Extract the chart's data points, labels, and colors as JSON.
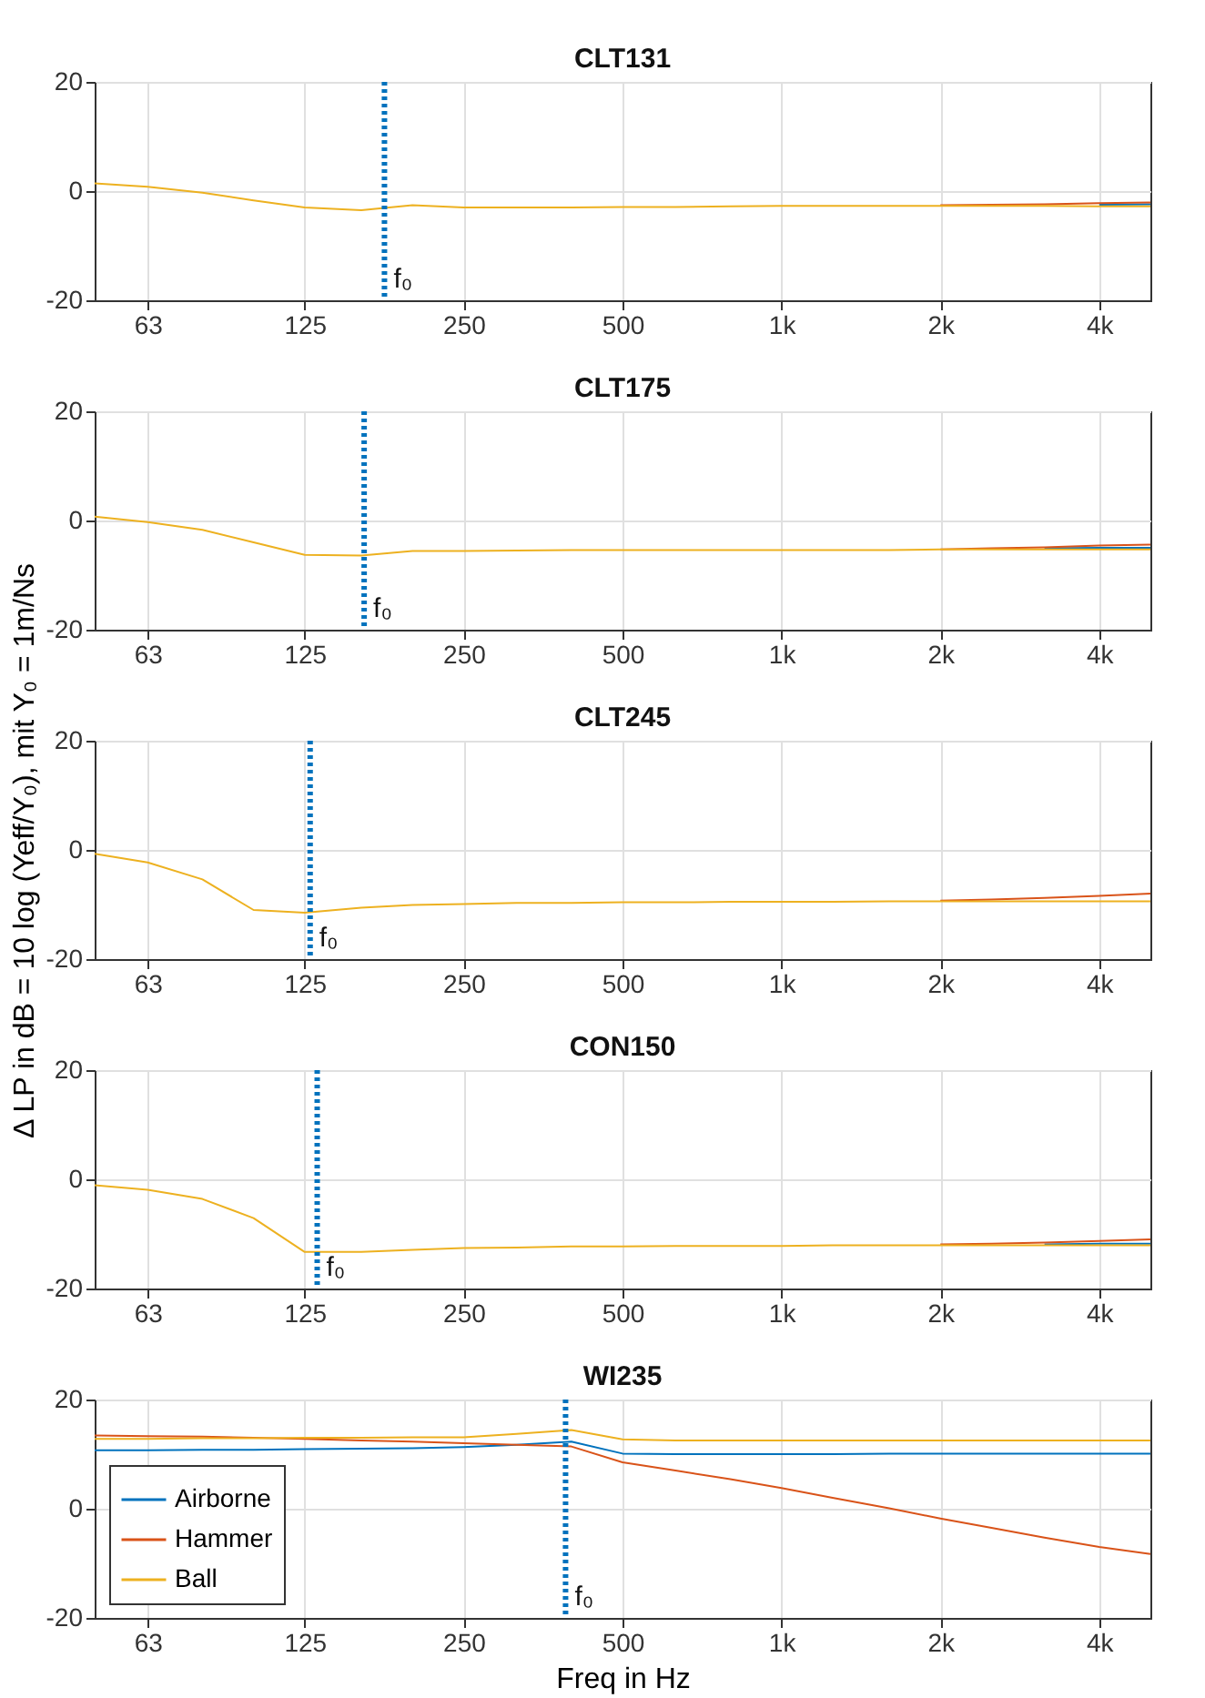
{
  "chart_data": [
    {
      "type": "line",
      "title": "CLT131",
      "x": [
        50,
        63,
        80,
        100,
        125,
        160,
        200,
        250,
        315,
        400,
        500,
        630,
        800,
        1000,
        1250,
        1600,
        2000,
        2500,
        3150,
        4000,
        5000
      ],
      "xlim": [
        50,
        5000
      ],
      "xticks": [
        63,
        125,
        250,
        500,
        {
          "value": 1000,
          "label": "1k"
        },
        {
          "value": 2000,
          "label": "2k"
        },
        {
          "value": 4000,
          "label": "4k"
        }
      ],
      "ylim": [
        -20,
        20
      ],
      "yticks": [
        -20,
        0,
        20
      ],
      "grid": true,
      "log": "x",
      "series": [
        {
          "color": "#0072bd",
          "values": [
            null,
            null,
            null,
            null,
            null,
            null,
            null,
            null,
            null,
            null,
            null,
            null,
            null,
            null,
            null,
            null,
            null,
            null,
            null,
            -2.5,
            -2.4
          ]
        },
        {
          "color": "#d95319",
          "values": [
            null,
            null,
            null,
            null,
            null,
            null,
            null,
            null,
            null,
            null,
            null,
            null,
            null,
            null,
            null,
            null,
            -2.6,
            -2.5,
            -2.4,
            -2.2,
            -2.1
          ]
        },
        {
          "color": "#edb120",
          "values": [
            1.4,
            0.8,
            -0.3,
            -1.7,
            -3.0,
            -3.5,
            -2.6,
            -3.0,
            -3.0,
            -3.0,
            -2.9,
            -2.9,
            -2.8,
            -2.7,
            -2.7,
            -2.7,
            -2.7,
            -2.7,
            -2.7,
            -2.8,
            -2.8
          ]
        }
      ],
      "ref_lines": [
        {
          "axis": "x",
          "value": 177,
          "label": "f₀",
          "color": "#0072bd",
          "line_style": "dotted"
        }
      ]
    },
    {
      "type": "line",
      "title": "CLT175",
      "x": [
        50,
        63,
        80,
        100,
        125,
        160,
        200,
        250,
        315,
        400,
        500,
        630,
        800,
        1000,
        1250,
        1600,
        2000,
        2500,
        3150,
        4000,
        5000
      ],
      "xlim": [
        50,
        5000
      ],
      "xticks": [
        63,
        125,
        250,
        500,
        {
          "value": 1000,
          "label": "1k"
        },
        {
          "value": 2000,
          "label": "2k"
        },
        {
          "value": 4000,
          "label": "4k"
        }
      ],
      "ylim": [
        -20,
        20
      ],
      "yticks": [
        -20,
        0,
        20
      ],
      "grid": true,
      "log": "x",
      "series": [
        {
          "color": "#0072bd",
          "values": [
            null,
            null,
            null,
            null,
            null,
            null,
            null,
            null,
            null,
            null,
            null,
            null,
            null,
            null,
            null,
            null,
            null,
            null,
            -5.1,
            -5.0,
            -5.0
          ]
        },
        {
          "color": "#d95319",
          "values": [
            null,
            null,
            null,
            null,
            null,
            null,
            null,
            null,
            null,
            null,
            null,
            null,
            null,
            null,
            null,
            null,
            -5.3,
            -5.1,
            -4.9,
            -4.6,
            -4.4
          ]
        },
        {
          "color": "#edb120",
          "values": [
            0.7,
            -0.3,
            -1.7,
            -4.0,
            -6.3,
            -6.4,
            -5.6,
            -5.6,
            -5.5,
            -5.4,
            -5.4,
            -5.4,
            -5.4,
            -5.4,
            -5.4,
            -5.4,
            -5.3,
            -5.3,
            -5.3,
            -5.3,
            -5.3
          ]
        }
      ],
      "ref_lines": [
        {
          "axis": "x",
          "value": 162,
          "label": "f₀",
          "color": "#0072bd",
          "line_style": "dotted"
        }
      ]
    },
    {
      "type": "line",
      "title": "CLT245",
      "x": [
        50,
        63,
        80,
        100,
        125,
        160,
        200,
        250,
        315,
        400,
        500,
        630,
        800,
        1000,
        1250,
        1600,
        2000,
        2500,
        3150,
        4000,
        5000
      ],
      "xlim": [
        50,
        5000
      ],
      "xticks": [
        63,
        125,
        250,
        500,
        {
          "value": 1000,
          "label": "1k"
        },
        {
          "value": 2000,
          "label": "2k"
        },
        {
          "value": 4000,
          "label": "4k"
        }
      ],
      "ylim": [
        -20,
        20
      ],
      "yticks": [
        -20,
        0,
        20
      ],
      "grid": true,
      "log": "x",
      "ylabel": "Δ LP in dB = 10 log (Yeff/Y₀), mit Y₀ = 1m/Ns",
      "series": [
        {
          "color": "#0072bd",
          "values": [
            null,
            null,
            null,
            null,
            null,
            null,
            null,
            null,
            null,
            null,
            null,
            null,
            null,
            null,
            null,
            null,
            null,
            null,
            null,
            null,
            null
          ]
        },
        {
          "color": "#d95319",
          "values": [
            null,
            null,
            null,
            null,
            null,
            null,
            null,
            null,
            null,
            null,
            null,
            null,
            null,
            null,
            null,
            null,
            -9.3,
            -9.1,
            -8.8,
            -8.4,
            -8.0
          ]
        },
        {
          "color": "#edb120",
          "values": [
            -0.7,
            -2.3,
            -5.4,
            -11.0,
            -11.5,
            -10.6,
            -10.1,
            -9.9,
            -9.7,
            -9.7,
            -9.6,
            -9.6,
            -9.5,
            -9.5,
            -9.5,
            -9.4,
            -9.4,
            -9.4,
            -9.4,
            -9.4,
            -9.4
          ]
        }
      ],
      "ref_lines": [
        {
          "axis": "x",
          "value": 128,
          "label": "f₀",
          "color": "#0072bd",
          "line_style": "dotted"
        }
      ]
    },
    {
      "type": "line",
      "title": "CON150",
      "x": [
        50,
        63,
        80,
        100,
        125,
        160,
        200,
        250,
        315,
        400,
        500,
        630,
        800,
        1000,
        1250,
        1600,
        2000,
        2500,
        3150,
        4000,
        5000
      ],
      "xlim": [
        50,
        5000
      ],
      "xticks": [
        63,
        125,
        250,
        500,
        {
          "value": 1000,
          "label": "1k"
        },
        {
          "value": 2000,
          "label": "2k"
        },
        {
          "value": 4000,
          "label": "4k"
        }
      ],
      "ylim": [
        -20,
        20
      ],
      "yticks": [
        -20,
        0,
        20
      ],
      "grid": true,
      "log": "x",
      "series": [
        {
          "color": "#0072bd",
          "values": [
            null,
            null,
            null,
            null,
            null,
            null,
            null,
            null,
            null,
            null,
            null,
            null,
            null,
            null,
            null,
            null,
            null,
            null,
            -11.9,
            -11.8,
            -11.8
          ]
        },
        {
          "color": "#d95319",
          "values": [
            null,
            null,
            null,
            null,
            null,
            null,
            null,
            null,
            null,
            null,
            null,
            null,
            null,
            null,
            null,
            null,
            -11.9,
            -11.8,
            -11.6,
            -11.3,
            -11.0
          ]
        },
        {
          "color": "#edb120",
          "values": [
            -1.1,
            -1.9,
            -3.6,
            -7.1,
            -13.3,
            -13.3,
            -12.9,
            -12.6,
            -12.5,
            -12.3,
            -12.3,
            -12.2,
            -12.2,
            -12.2,
            -12.1,
            -12.1,
            -12.1,
            -12.1,
            -12.1,
            -12.1,
            -12.1
          ]
        }
      ],
      "ref_lines": [
        {
          "axis": "x",
          "value": 132,
          "label": "f₀",
          "color": "#0072bd",
          "line_style": "dotted"
        }
      ]
    },
    {
      "type": "line",
      "title": "WI235",
      "xlabel": "Freq in Hz",
      "x": [
        50,
        63,
        80,
        100,
        125,
        160,
        200,
        250,
        315,
        400,
        500,
        630,
        800,
        1000,
        1250,
        1600,
        2000,
        2500,
        3150,
        4000,
        5000
      ],
      "xlim": [
        50,
        5000
      ],
      "xticks": [
        63,
        125,
        250,
        500,
        {
          "value": 1000,
          "label": "1k"
        },
        {
          "value": 2000,
          "label": "2k"
        },
        {
          "value": 4000,
          "label": "4k"
        }
      ],
      "ylim": [
        -20,
        20
      ],
      "yticks": [
        -20,
        0,
        20
      ],
      "grid": true,
      "log": "x",
      "legend": "bottom left",
      "series": [
        {
          "name": "Airborne",
          "color": "#0072bd",
          "values": [
            10.7,
            10.7,
            10.8,
            10.8,
            10.9,
            11.0,
            11.1,
            11.3,
            11.7,
            12.3,
            10.1,
            10.0,
            10.0,
            10.0,
            10.0,
            10.1,
            10.1,
            10.1,
            10.1,
            10.1,
            10.1
          ]
        },
        {
          "name": "Hammer",
          "color": "#d95319",
          "values": [
            13.4,
            13.3,
            13.2,
            13.0,
            12.8,
            12.5,
            12.3,
            12.0,
            11.7,
            11.4,
            8.5,
            7.0,
            5.4,
            3.8,
            2.0,
            0.1,
            -1.8,
            -3.5,
            -5.3,
            -7.0,
            -8.3
          ]
        },
        {
          "name": "Ball",
          "color": "#edb120",
          "values": [
            12.8,
            12.8,
            12.9,
            12.9,
            13.0,
            13.0,
            13.1,
            13.1,
            13.7,
            14.4,
            12.7,
            12.5,
            12.5,
            12.5,
            12.5,
            12.5,
            12.5,
            12.5,
            12.5,
            12.5,
            12.5
          ]
        }
      ],
      "ref_lines": [
        {
          "axis": "x",
          "value": 390,
          "label": "f₀",
          "color": "#0072bd",
          "line_style": "dotted"
        }
      ]
    }
  ]
}
